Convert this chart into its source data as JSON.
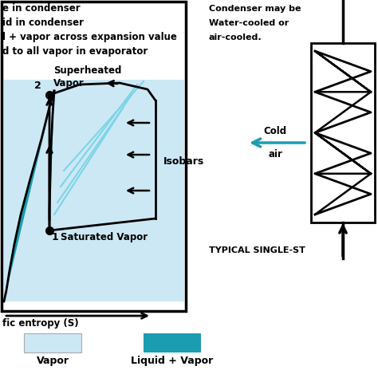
{
  "bg_color": "#ffffff",
  "vapor_light": "#cce8f4",
  "liquid_vapor_color": "#1a9db0",
  "legend_vapor_color": "#cce8f4",
  "legend_lv_color": "#1a9db0",
  "isobar_color": "#7dd4e8",
  "title_lines": [
    "e in condenser",
    "id in condenser",
    "l + vapor across expansion value",
    "d to all vapor in evaporator"
  ],
  "xlabel": "fic entropy (S)",
  "condenser_text_line1": "Condenser may be",
  "condenser_text_line2": "Water-cooled or",
  "condenser_text_line3": "air-cooled.",
  "cold_air_label_line1": "Cold",
  "cold_air_label_line2": "air",
  "typical_label": "TYPICAL SINGLE-ST",
  "vapor_legend": "Vapor",
  "lv_legend": "Liquid + Vapor",
  "cold_air_arrow_color": "#1a9db0"
}
